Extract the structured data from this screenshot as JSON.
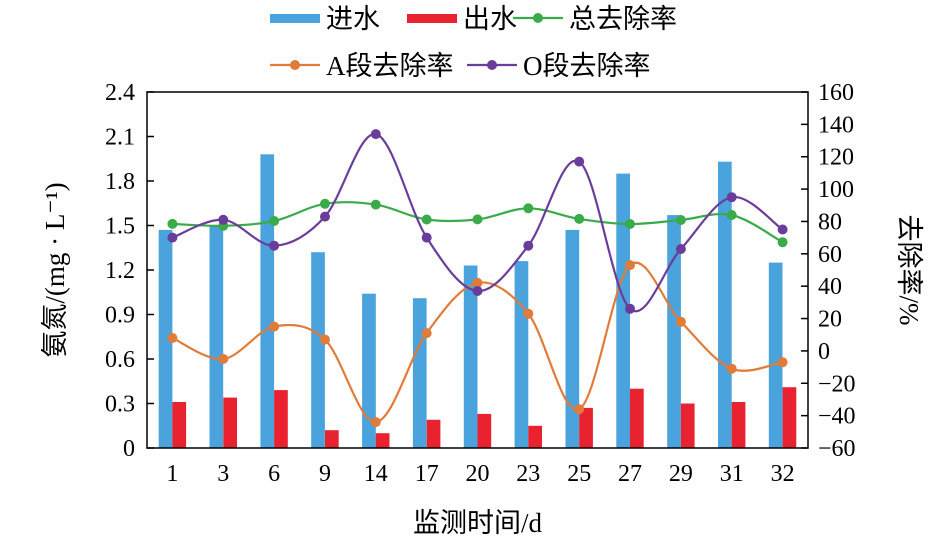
{
  "chart_data": {
    "type": "bar",
    "xlabel": "监测时间/d",
    "ylabel_left": "氨氮/(mg · L⁻¹)",
    "ylabel_right": "去除率/%",
    "categories": [
      "1",
      "3",
      "6",
      "9",
      "14",
      "17",
      "20",
      "23",
      "25",
      "27",
      "29",
      "31",
      "32"
    ],
    "y_left": {
      "range": [
        0,
        2.4
      ],
      "ticks": [
        "0",
        "0.3",
        "0.6",
        "0.9",
        "1.2",
        "1.5",
        "1.8",
        "2.1",
        "2.4"
      ]
    },
    "y_right": {
      "range": [
        -60,
        160
      ],
      "ticks": [
        "−60",
        "−40",
        "−20",
        "0",
        "20",
        "40",
        "60",
        "80",
        "100",
        "120",
        "140",
        "160"
      ]
    },
    "series": [
      {
        "name": "进水",
        "kind": "bar",
        "axis": "left",
        "color": "#4aa3dc",
        "values": [
          1.47,
          1.5,
          1.98,
          1.32,
          1.04,
          1.01,
          1.23,
          1.26,
          1.47,
          1.85,
          1.57,
          1.93,
          1.25
        ]
      },
      {
        "name": "出水",
        "kind": "bar",
        "axis": "left",
        "color": "#e8232f",
        "values": [
          0.31,
          0.34,
          0.39,
          0.12,
          0.1,
          0.19,
          0.23,
          0.15,
          0.27,
          0.4,
          0.3,
          0.31,
          0.41
        ]
      },
      {
        "name": "总去除率",
        "kind": "line",
        "axis": "right",
        "color": "#3aab48",
        "values": [
          78.5,
          77.3,
          80.3,
          90.9,
          90.4,
          81.2,
          81.3,
          88.1,
          81.6,
          78.4,
          80.9,
          84.0,
          67.2
        ]
      },
      {
        "name": "A段去除率",
        "kind": "line",
        "axis": "right",
        "color": "#e07b39",
        "values": [
          8,
          -5,
          15,
          7,
          -44,
          11,
          42,
          23,
          -36,
          53,
          18,
          -11,
          -7
        ]
      },
      {
        "name": "O段去除率",
        "kind": "line",
        "axis": "right",
        "color": "#6a3d9a",
        "values": [
          70,
          81,
          65,
          83,
          134,
          70,
          37,
          65,
          117,
          26,
          63,
          95,
          75
        ]
      }
    ],
    "legend": {
      "placement": "top",
      "rows": [
        [
          "进水",
          "出水",
          "总去除率"
        ],
        [
          "A段去除率",
          "O段去除率"
        ]
      ]
    },
    "grid": false
  }
}
